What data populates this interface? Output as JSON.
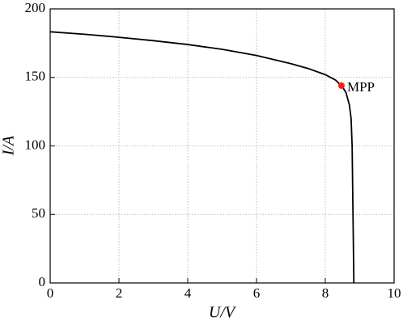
{
  "chart_data": {
    "type": "line",
    "x_label": "U/V",
    "y_label": "I/A",
    "xlim": [
      0,
      10
    ],
    "ylim": [
      0,
      200
    ],
    "xticks": [
      0,
      2,
      4,
      6,
      8,
      10
    ],
    "yticks": [
      0,
      50,
      100,
      150,
      200
    ],
    "grid": true,
    "series": [
      {
        "color": "#000000",
        "x": [
          0,
          1,
          2,
          3,
          4,
          5,
          6,
          7,
          7.5,
          8,
          8.3,
          8.5,
          8.6,
          8.7,
          8.75,
          8.78,
          8.8,
          8.82,
          8.83
        ],
        "values": [
          183.3,
          181.5,
          179.3,
          176.8,
          174,
          170.5,
          166,
          160,
          156.5,
          152,
          148,
          143,
          139,
          130,
          120,
          100,
          60,
          20,
          0
        ]
      }
    ],
    "points": [
      {
        "x": 8.47,
        "y": 144,
        "label": "MPP",
        "color": "#ff1a1a"
      }
    ]
  }
}
